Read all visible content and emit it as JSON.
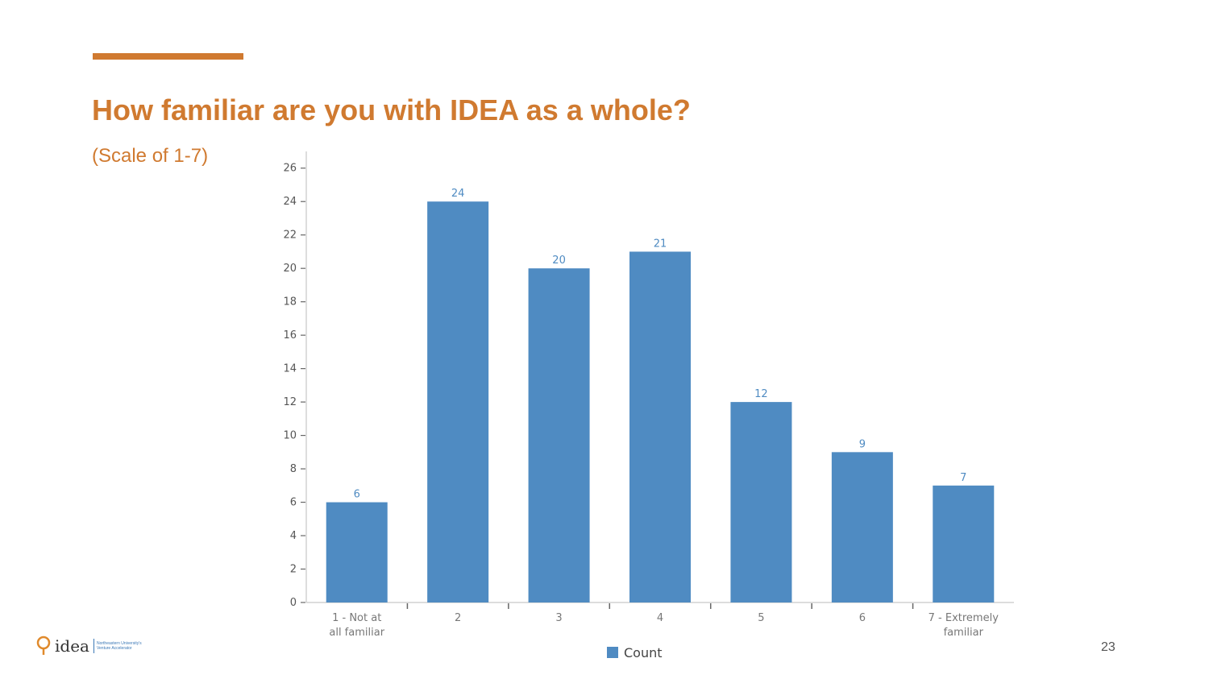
{
  "slide": {
    "title": "How familiar are you with IDEA as a whole?",
    "subtitle": "(Scale of 1-7)",
    "page_number": "23",
    "accent_color": "#d07a30"
  },
  "logo": {
    "icon": "lightbulb-pin-icon",
    "wordmark": "idea",
    "line1": "Northeastern University's",
    "line2": "Venture Accelerator"
  },
  "chart_data": {
    "type": "bar",
    "categories": [
      [
        "1 - Not at",
        "all familiar"
      ],
      [
        "2"
      ],
      [
        "3"
      ],
      [
        "4"
      ],
      [
        "5"
      ],
      [
        "6"
      ],
      [
        "7 - Extremely",
        "familiar"
      ]
    ],
    "series": [
      {
        "name": "Count",
        "values": [
          6,
          24,
          20,
          21,
          12,
          9,
          7
        ],
        "color": "#4f8bc2"
      }
    ],
    "ylim": [
      0,
      27
    ],
    "yticks": [
      0,
      2,
      4,
      6,
      8,
      10,
      12,
      14,
      16,
      18,
      20,
      22,
      24,
      26
    ],
    "grid": false,
    "legend_position": "bottom-center",
    "data_labels": true,
    "data_label_color": "#4f8bc2"
  }
}
